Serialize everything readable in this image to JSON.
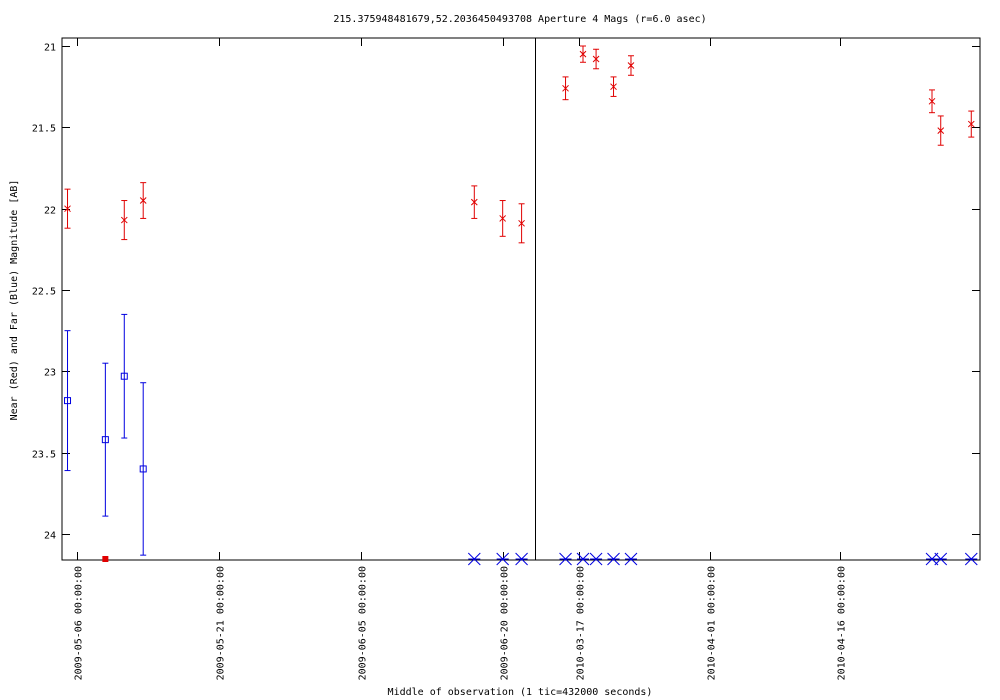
{
  "chart_data": {
    "type": "scatter",
    "title": "215.375948481679,52.2036450493708   Aperture 4 Mags (r=6.0 asec)",
    "xlabel": "Middle of observation (1 tic=432000 seconds)",
    "ylabel": "Near (Red) and Far (Blue) Magnitude [AB]",
    "y_inverted": true,
    "ylim": [
      21.0,
      24.15
    ],
    "y_ticks": [
      "21",
      "21.5",
      "22",
      "22.5",
      "23",
      "23.5",
      "24"
    ],
    "x_ticks": [
      "2009-05-06 00:00:00",
      "2009-05-21 00:00:00",
      "2009-06-05 00:00:00",
      "2009-06-20 00:00:00",
      "2010-03-17 00:00:00",
      "2010-04-01 00:00:00",
      "2010-04-16 00:00:00"
    ],
    "panels": [
      {
        "xlim": [
          "2009-05-04 10:00",
          "2009-06-23 10:00"
        ],
        "ticks": [
          "2009-05-06",
          "2009-05-21",
          "2009-06-05",
          "2009-06-20"
        ]
      },
      {
        "xlim": [
          "2010-03-12 00:00",
          "2010-05-02 00:00"
        ],
        "ticks": [
          "2010-03-17",
          "2010-04-01",
          "2010-04-16"
        ]
      }
    ],
    "grid": false,
    "legend": "none",
    "series": [
      {
        "color": "#e00000",
        "marker": "x",
        "points": [
          {
            "x": "2009-05-05 00:00",
            "y": 22.0,
            "err": 0.12
          },
          {
            "x": "2009-05-11 00:00",
            "y": 22.07,
            "err": 0.12
          },
          {
            "x": "2009-05-13 00:00",
            "y": 21.95,
            "err": 0.11
          },
          {
            "x": "2009-06-17 00:00",
            "y": 21.96,
            "err": 0.1
          },
          {
            "x": "2009-06-20 00:00",
            "y": 22.06,
            "err": 0.11
          },
          {
            "x": "2009-06-22 00:00",
            "y": 22.09,
            "err": 0.12
          },
          {
            "x": "2010-03-15 12:00",
            "y": 21.26,
            "err": 0.07
          },
          {
            "x": "2010-03-17 12:00",
            "y": 21.05,
            "err": 0.05
          },
          {
            "x": "2010-03-19 00:00",
            "y": 21.08,
            "err": 0.06
          },
          {
            "x": "2010-03-21 00:00",
            "y": 21.25,
            "err": 0.06
          },
          {
            "x": "2010-03-23 00:00",
            "y": 21.12,
            "err": 0.06
          },
          {
            "x": "2010-04-26 12:00",
            "y": 21.34,
            "err": 0.07
          },
          {
            "x": "2010-04-27 12:00",
            "y": 21.52,
            "err": 0.09
          },
          {
            "x": "2010-05-01 00:00",
            "y": 21.48,
            "err": 0.08
          }
        ]
      },
      {
        "color": "#0000e0",
        "marker": "square",
        "points": [
          {
            "x": "2009-05-05 00:00",
            "y": 23.18,
            "err": 0.43
          },
          {
            "x": "2009-05-09 00:00",
            "y": 23.42,
            "err": 0.47
          },
          {
            "x": "2009-05-11 00:00",
            "y": 23.03,
            "err": 0.38
          },
          {
            "x": "2009-05-13 00:00",
            "y": 23.6,
            "err": 0.53
          }
        ]
      },
      {
        "color": "#e00000",
        "marker": "filled-square",
        "note_type": "limit",
        "points": [
          {
            "x": "2009-05-09 00:00",
            "y": 24.15
          }
        ]
      },
      {
        "color": "#0000e0",
        "marker": "asterisk",
        "note_type": "limit",
        "points": [
          {
            "x": "2009-06-17 00:00",
            "y": 24.15
          },
          {
            "x": "2009-06-20 00:00",
            "y": 24.15
          },
          {
            "x": "2009-06-22 00:00",
            "y": 24.15
          },
          {
            "x": "2010-03-15 12:00",
            "y": 24.15
          },
          {
            "x": "2010-03-17 12:00",
            "y": 24.15
          },
          {
            "x": "2010-03-19 00:00",
            "y": 24.15
          },
          {
            "x": "2010-03-21 00:00",
            "y": 24.15
          },
          {
            "x": "2010-03-23 00:00",
            "y": 24.15
          },
          {
            "x": "2010-04-26 12:00",
            "y": 24.15
          },
          {
            "x": "2010-04-27 12:00",
            "y": 24.15
          },
          {
            "x": "2010-05-01 00:00",
            "y": 24.15
          }
        ]
      }
    ]
  }
}
